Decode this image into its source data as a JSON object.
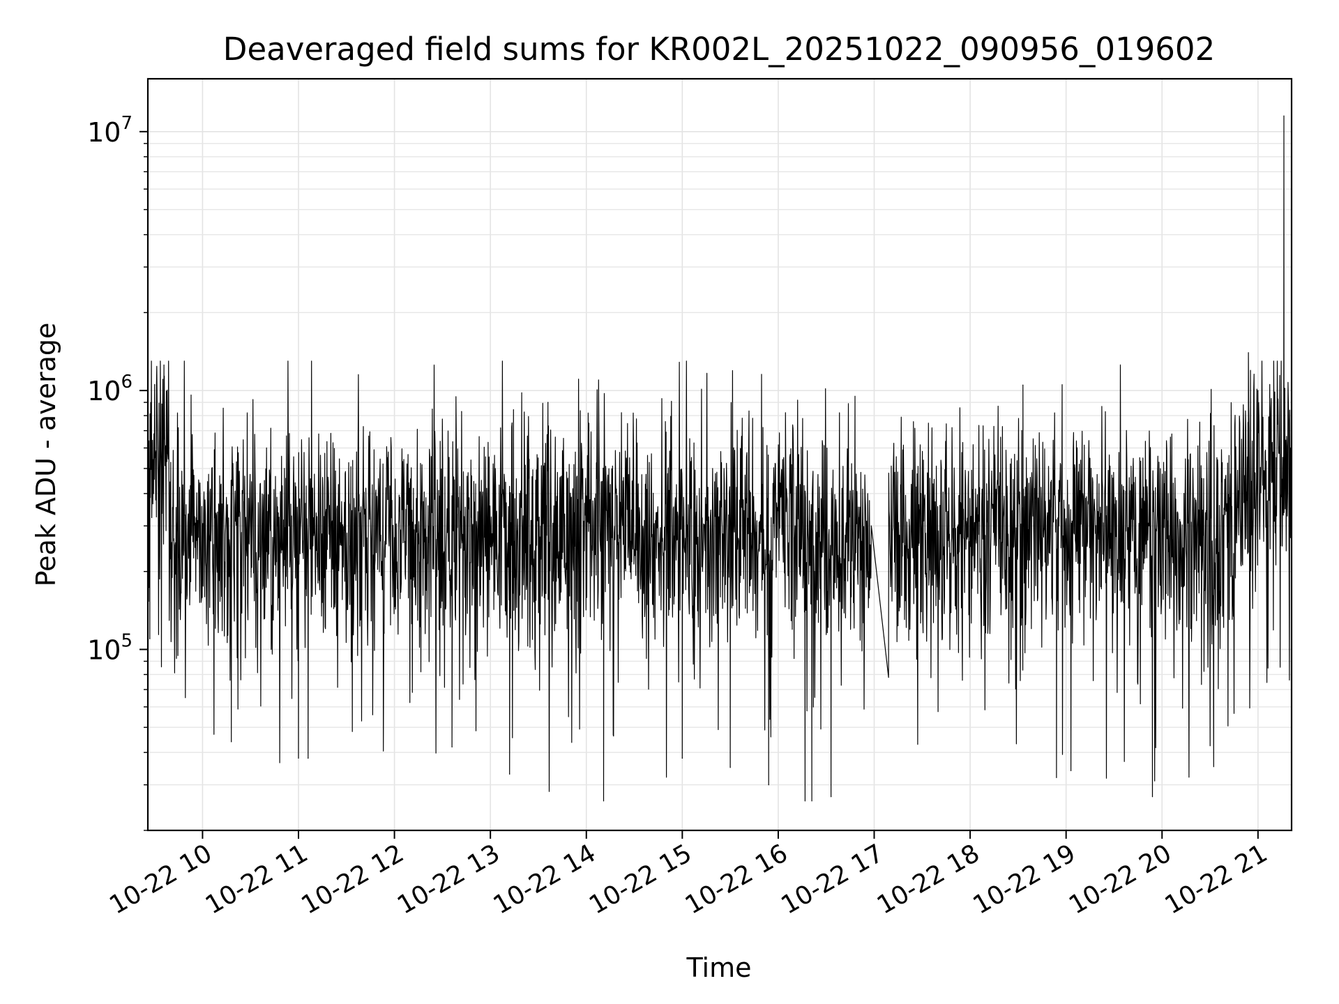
{
  "chart_data": {
    "type": "line",
    "title": "Deaveraged field sums for KR002L_20251022_090956_019602",
    "xlabel": "Time",
    "ylabel": "Peak ADU - average",
    "yscale": "log",
    "ylim": [
      20000,
      16000000
    ],
    "xlim_hours": [
      9.43,
      21.35
    ],
    "grid": true,
    "line_color": "#000000",
    "x_ticks": [
      {
        "hour": 10,
        "label": "10-22 10"
      },
      {
        "hour": 11,
        "label": "10-22 11"
      },
      {
        "hour": 12,
        "label": "10-22 12"
      },
      {
        "hour": 13,
        "label": "10-22 13"
      },
      {
        "hour": 14,
        "label": "10-22 14"
      },
      {
        "hour": 15,
        "label": "10-22 15"
      },
      {
        "hour": 16,
        "label": "10-22 16"
      },
      {
        "hour": 17,
        "label": "10-22 17"
      },
      {
        "hour": 18,
        "label": "10-22 18"
      },
      {
        "hour": 19,
        "label": "10-22 19"
      },
      {
        "hour": 20,
        "label": "10-22 20"
      },
      {
        "hour": 21,
        "label": "10-22 21"
      }
    ],
    "y_ticks": [
      {
        "value": 100000,
        "base": "10",
        "exp": "5"
      },
      {
        "value": 1000000,
        "base": "10",
        "exp": "6"
      },
      {
        "value": 10000000,
        "base": "10",
        "exp": "7"
      }
    ],
    "gap_hours": [
      16.97,
      17.15
    ],
    "series_summary": {
      "name": "Peak ADU - average",
      "typical_value": 280000,
      "typical_spread_low": 100000,
      "typical_spread_high": 600000,
      "min_value": 26000,
      "max_value": 11500000,
      "max_at_hour": 21.27
    },
    "notable_points": [
      {
        "hour": 9.45,
        "value": 110000
      },
      {
        "hour": 9.52,
        "value": 1050000
      },
      {
        "hour": 9.6,
        "value": 650000
      },
      {
        "hour": 10.3,
        "value": 44000
      },
      {
        "hour": 11.0,
        "value": 38000
      },
      {
        "hour": 11.1,
        "value": 38000
      },
      {
        "hour": 12.6,
        "value": 42000
      },
      {
        "hour": 12.7,
        "value": 830000
      },
      {
        "hour": 13.2,
        "value": 33000
      },
      {
        "hour": 13.6,
        "value": 900000
      },
      {
        "hour": 14.18,
        "value": 26000
      },
      {
        "hour": 15.0,
        "value": 38000
      },
      {
        "hour": 15.5,
        "value": 35000
      },
      {
        "hour": 15.9,
        "value": 30000
      },
      {
        "hour": 16.28,
        "value": 26000
      },
      {
        "hour": 16.35,
        "value": 26000
      },
      {
        "hour": 16.55,
        "value": 27000
      },
      {
        "hour": 16.8,
        "value": 950000
      },
      {
        "hour": 16.97,
        "value": 300000
      },
      {
        "hour": 17.15,
        "value": 78000
      },
      {
        "hour": 18.55,
        "value": 1050000
      },
      {
        "hour": 18.9,
        "value": 32000
      },
      {
        "hour": 19.05,
        "value": 34000
      },
      {
        "hour": 19.9,
        "value": 27000
      },
      {
        "hour": 20.9,
        "value": 1400000
      },
      {
        "hour": 21.0,
        "value": 1000000
      },
      {
        "hour": 21.27,
        "value": 11500000
      },
      {
        "hour": 21.34,
        "value": 600000
      }
    ]
  }
}
